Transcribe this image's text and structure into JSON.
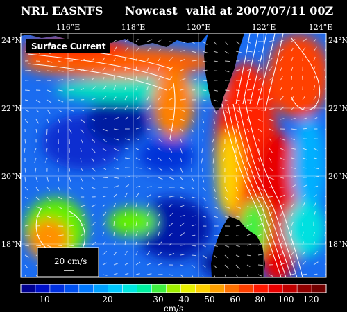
{
  "header": {
    "source": "NRL EASNFS",
    "product": "Nowcast",
    "valid": "valid at 2007/07/11 00Z"
  },
  "map": {
    "field_label": "Surface Current",
    "lon_ticks": [
      "116°E",
      "118°E",
      "120°E",
      "122°E",
      "124°E"
    ],
    "lat_ticks": [
      "24°N",
      "22°N",
      "20°N",
      "18°N"
    ],
    "lat_ticks_right": [
      "24°N",
      "22°N",
      "20°N",
      "18°N"
    ],
    "land_color": "#000000",
    "ocean_low_color": "#0b1aa8"
  },
  "scale_vector": {
    "label": "20 cm/s"
  },
  "colorbar": {
    "unit": "cm/s",
    "tick_labels": [
      "10",
      "20",
      "30",
      "40",
      "50",
      "60",
      "80",
      "100",
      "120"
    ],
    "colors": [
      "#000090",
      "#0010c8",
      "#0030e0",
      "#0050f0",
      "#0078ff",
      "#00a0ff",
      "#00c8ff",
      "#00e8e0",
      "#00f0a0",
      "#40f040",
      "#a0f000",
      "#e8f000",
      "#ffd000",
      "#ffa000",
      "#ff7000",
      "#ff4000",
      "#ff1800",
      "#e80000",
      "#c00000",
      "#900000",
      "#700000"
    ]
  }
}
